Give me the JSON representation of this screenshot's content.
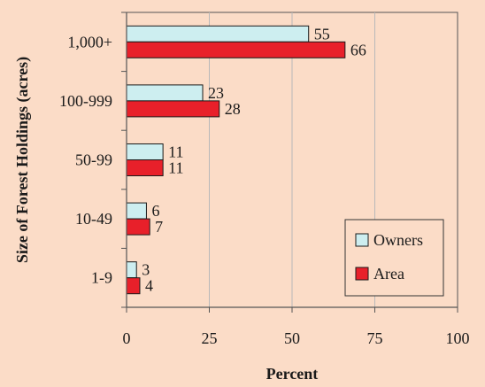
{
  "colors": {
    "background": "#fbdcc7",
    "owners": "#cdeef0",
    "area": "#e8202a",
    "grid": "#b9b9b9",
    "axis": "#555555"
  },
  "chart_data": {
    "type": "bar",
    "orientation": "horizontal",
    "categories": [
      "1,000+",
      "100-999",
      "50-99",
      "10-49",
      "1-9"
    ],
    "series": [
      {
        "name": "Owners",
        "values": [
          55,
          23,
          11,
          6,
          3
        ]
      },
      {
        "name": "Area",
        "values": [
          66,
          28,
          11,
          7,
          4
        ]
      }
    ],
    "xlabel": "Percent",
    "ylabel": "Size of Forest Holdings (acres)",
    "xlim": [
      0,
      100
    ],
    "xticks": [
      0,
      25,
      50,
      75,
      100
    ],
    "grid": "vertical",
    "legend_position": "bottom-right"
  }
}
